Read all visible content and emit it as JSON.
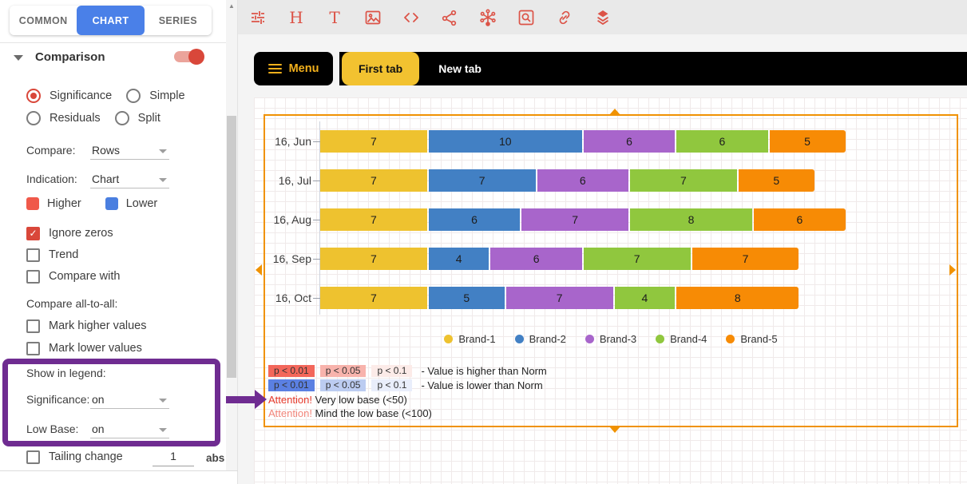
{
  "sidebar": {
    "tabs": [
      {
        "label": "COMMON",
        "active": false
      },
      {
        "label": "CHART",
        "active": true
      },
      {
        "label": "SERIES",
        "active": false
      }
    ],
    "section": {
      "title": "Comparison",
      "toggle_on": true
    },
    "mode_radios": [
      {
        "label": "Significance",
        "selected": true
      },
      {
        "label": "Simple",
        "selected": false
      },
      {
        "label": "Residuals",
        "selected": false
      },
      {
        "label": "Split",
        "selected": false
      }
    ],
    "compare": {
      "label": "Compare:",
      "value": "Rows"
    },
    "indication": {
      "label": "Indication:",
      "value": "Chart"
    },
    "higher_label": "Higher",
    "lower_label": "Lower",
    "higher_color": "#f0594a",
    "lower_color": "#4a7fe0",
    "checkboxes": [
      {
        "label": "Ignore zeros",
        "checked": true
      },
      {
        "label": "Trend",
        "checked": false
      },
      {
        "label": "Compare with",
        "checked": false
      }
    ],
    "all_to_all_label": "Compare all-to-all:",
    "all_to_all_checkboxes": [
      {
        "label": "Mark higher values",
        "checked": false
      },
      {
        "label": "Mark lower values",
        "checked": false
      }
    ],
    "show_in_legend": {
      "title": "Show in legend:",
      "significance_label": "Significance:",
      "significance_value": "on",
      "low_base_label": "Low Base:",
      "low_base_value": "on"
    },
    "tailing": {
      "label": "Tailing change",
      "checked": false,
      "value": "1",
      "unit": "abs"
    }
  },
  "toolbar": {
    "icon_color": "#dc5347",
    "icons": [
      "sliders-icon",
      "heading-icon",
      "text-icon",
      "image-icon",
      "code-icon",
      "share-nodes-icon",
      "network-icon",
      "zoom-icon",
      "link-icon",
      "layers-icon"
    ]
  },
  "menubar": {
    "menu_label": "Menu",
    "accent": "#f2b01c",
    "tabs": [
      {
        "label": "First tab",
        "active": true
      },
      {
        "label": "New tab",
        "active": false
      }
    ]
  },
  "chart_data": {
    "type": "bar",
    "orientation": "horizontal",
    "stacked": true,
    "categories": [
      "16, Jun",
      "16, Jul",
      "16, Aug",
      "16, Sep",
      "16, Oct"
    ],
    "series": [
      {
        "name": "Brand-1",
        "color": "#eec22f",
        "values": [
          7,
          7,
          7,
          7,
          7
        ]
      },
      {
        "name": "Brand-2",
        "color": "#4280c4",
        "values": [
          10,
          7,
          6,
          4,
          5
        ]
      },
      {
        "name": "Brand-3",
        "color": "#a865cb",
        "values": [
          6,
          6,
          7,
          6,
          7
        ]
      },
      {
        "name": "Brand-4",
        "color": "#90c73e",
        "values": [
          6,
          7,
          8,
          7,
          4
        ]
      },
      {
        "name": "Brand-5",
        "color": "#f78b05",
        "values": [
          5,
          5,
          6,
          7,
          8
        ]
      }
    ],
    "value_labels_shown": true,
    "legend_position": "bottom",
    "grid": "dotted canvas grid background",
    "widget_border_color": "#f09202"
  },
  "significance_legend": {
    "higher": {
      "badges": [
        {
          "label": "p < 0.01",
          "bg": "#f3675b"
        },
        {
          "label": "p < 0.05",
          "bg": "#f8b3ac"
        },
        {
          "label": "p < 0.1",
          "bg": "#fcebe8"
        }
      ],
      "text": "- Value is higher than Norm"
    },
    "lower": {
      "badges": [
        {
          "label": "p < 0.01",
          "bg": "#5b80e2"
        },
        {
          "label": "p < 0.05",
          "bg": "#bcccf1"
        },
        {
          "label": "p < 0.1",
          "bg": "#e9eefb"
        }
      ],
      "text": "- Value is lower than Norm"
    },
    "attention1": {
      "prefix": "Attention!",
      "prefix_color": "#e6392b",
      "text": " Very low base (<50)"
    },
    "attention2": {
      "prefix": "Attention!",
      "prefix_color": "#f2857a",
      "text": " Mind the low base (<100)"
    }
  }
}
